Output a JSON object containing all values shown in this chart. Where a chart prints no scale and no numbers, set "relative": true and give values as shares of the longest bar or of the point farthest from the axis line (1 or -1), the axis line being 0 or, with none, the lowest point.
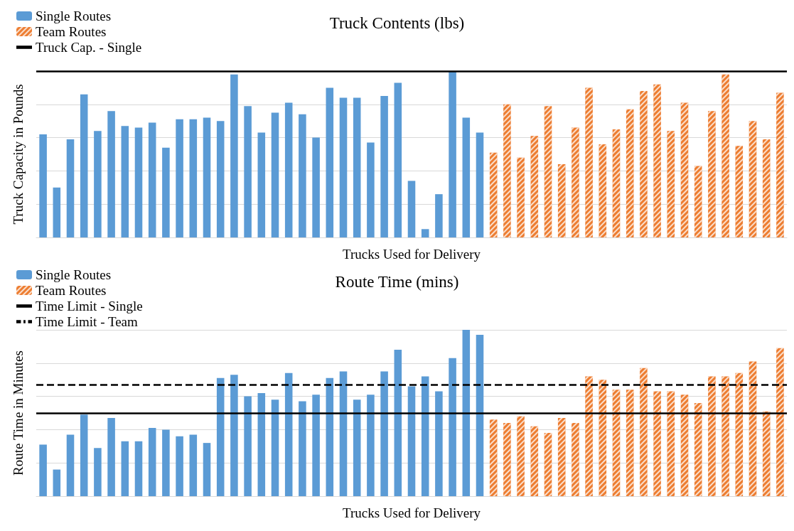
{
  "chart_data": [
    {
      "type": "bar",
      "title": "Truck Contents (lbs)",
      "xlabel": "Trucks Used for Delivery",
      "ylabel": "Truck Capacity in Pounds",
      "relative": true,
      "stacked": true,
      "grid": "y",
      "legend": "top left",
      "categories": [
        null,
        null,
        null,
        null,
        null,
        null,
        null,
        null,
        null,
        null,
        null,
        null,
        null,
        null,
        null,
        null,
        null,
        null,
        null,
        null,
        null,
        null,
        null,
        null,
        null,
        null,
        null,
        null,
        null,
        null,
        null,
        null,
        null,
        null,
        null,
        null,
        null,
        null,
        null,
        null,
        null,
        null,
        null,
        null,
        null,
        null,
        null,
        null,
        null,
        null,
        null,
        null,
        null,
        null,
        null
      ],
      "series": [
        {
          "name": "Single Routes",
          "color": "#5b9bd5",
          "values": [
            0.62,
            0.3,
            0.59,
            0.86,
            0.64,
            0.76,
            0.67,
            0.66,
            0.69,
            0.54,
            0.71,
            0.71,
            0.72,
            0.7,
            0.98,
            0.79,
            0.63,
            0.75,
            0.81,
            0.74,
            0.6,
            0.9,
            0.84,
            0.84,
            0.57,
            0.85,
            0.93,
            0.34,
            0.05,
            0.26,
            1.0,
            0.72,
            0.63,
            null,
            null,
            null,
            null,
            null,
            null,
            null,
            null,
            null,
            null,
            null,
            null,
            null,
            null,
            null,
            null,
            null,
            null,
            null,
            null,
            null,
            null
          ]
        },
        {
          "name": "Team Routes",
          "color": "#ed7d31",
          "values": [
            null,
            null,
            null,
            null,
            null,
            null,
            null,
            null,
            null,
            null,
            null,
            null,
            null,
            null,
            null,
            null,
            null,
            null,
            null,
            null,
            null,
            null,
            null,
            null,
            null,
            null,
            null,
            null,
            null,
            null,
            null,
            null,
            null,
            0.51,
            0.8,
            0.48,
            0.61,
            0.79,
            0.44,
            0.66,
            0.9,
            0.56,
            0.65,
            0.77,
            0.88,
            0.92,
            0.64,
            0.81,
            0.43,
            0.76,
            0.98,
            0.55,
            0.7,
            0.59,
            0.87
          ]
        }
      ],
      "ref_lines": [
        {
          "axis": "y",
          "value": 1.0,
          "label": "Truck Cap. - Single",
          "color": "#000000",
          "line_style": "solid"
        }
      ]
    },
    {
      "type": "bar",
      "title": "Route Time (mins)",
      "xlabel": "Trucks Used for Delivery",
      "ylabel": "Route Time in Minutes",
      "relative": true,
      "stacked": true,
      "grid": "y",
      "legend": "top left",
      "categories": [
        null,
        null,
        null,
        null,
        null,
        null,
        null,
        null,
        null,
        null,
        null,
        null,
        null,
        null,
        null,
        null,
        null,
        null,
        null,
        null,
        null,
        null,
        null,
        null,
        null,
        null,
        null,
        null,
        null,
        null,
        null,
        null,
        null,
        null,
        null,
        null,
        null,
        null,
        null,
        null,
        null,
        null,
        null,
        null,
        null,
        null,
        null,
        null,
        null,
        null,
        null,
        null,
        null,
        null,
        null
      ],
      "series": [
        {
          "name": "Single Routes",
          "color": "#5b9bd5",
          "values": [
            0.31,
            0.16,
            0.37,
            0.49,
            0.29,
            0.47,
            0.33,
            0.33,
            0.41,
            0.4,
            0.36,
            0.37,
            0.32,
            0.71,
            0.73,
            0.6,
            0.62,
            0.58,
            0.74,
            0.57,
            0.61,
            0.71,
            0.75,
            0.58,
            0.61,
            0.75,
            0.88,
            0.66,
            0.72,
            0.63,
            0.83,
            1.0,
            0.97,
            null,
            null,
            null,
            null,
            null,
            null,
            null,
            null,
            null,
            null,
            null,
            null,
            null,
            null,
            null,
            null,
            null,
            null,
            null,
            null,
            null,
            null
          ]
        },
        {
          "name": "Team Routes",
          "color": "#ed7d31",
          "values": [
            null,
            null,
            null,
            null,
            null,
            null,
            null,
            null,
            null,
            null,
            null,
            null,
            null,
            null,
            null,
            null,
            null,
            null,
            null,
            null,
            null,
            null,
            null,
            null,
            null,
            null,
            null,
            null,
            null,
            null,
            null,
            null,
            null,
            0.46,
            0.44,
            0.48,
            0.42,
            0.38,
            0.47,
            0.44,
            0.72,
            0.7,
            0.64,
            0.64,
            0.77,
            0.63,
            0.63,
            0.61,
            0.56,
            0.72,
            0.72,
            0.74,
            0.81,
            0.51,
            0.89
          ]
        }
      ],
      "ref_lines": [
        {
          "axis": "y",
          "value": 0.5,
          "label": "Time Limit - Single",
          "color": "#000000",
          "line_style": "solid"
        },
        {
          "axis": "y",
          "value": 0.67,
          "label": "Time Limit - Team",
          "color": "#000000",
          "line_style": "dashed"
        }
      ]
    }
  ]
}
